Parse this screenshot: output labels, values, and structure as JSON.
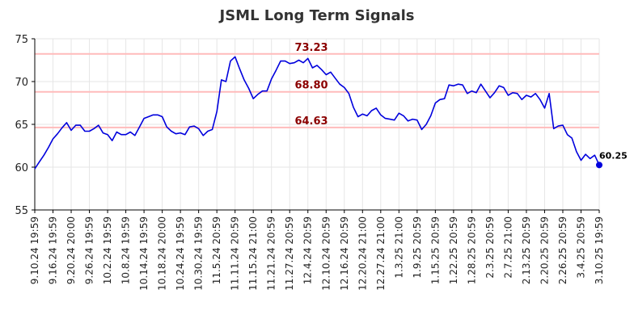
{
  "chart_data": {
    "type": "line",
    "title": "JSML Long Term Signals",
    "xlabel": "",
    "ylabel": "",
    "ylim": [
      55,
      75
    ],
    "y_ticks": [
      55,
      60,
      65,
      70,
      75
    ],
    "grid": true,
    "x_tick_labels": [
      "9.10.24 19:59",
      "9.16.24 19:59",
      "9.20.24 20:00",
      "9.26.24 19:59",
      "10.2.24 19:59",
      "10.8.24 19:59",
      "10.14.24 19:59",
      "10.18.24 20:00",
      "10.24.24 19:59",
      "10.30.24 19:59",
      "11.5.24 20:59",
      "11.11.24 20:59",
      "11.15.24 21:00",
      "11.21.24 20:59",
      "11.27.24 20:59",
      "12.4.24 20:59",
      "12.10.24 20:59",
      "12.16.24 20:59",
      "12.20.24 21:00",
      "12.27.24 21:00",
      "1.3.25 21:00",
      "1.9.25 20:59",
      "1.15.25 20:59",
      "1.22.25 20:59",
      "1.28.25 20:59",
      "2.3.25 20:59",
      "2.7.25 21:00",
      "2.13.25 20:59",
      "2.20.25 20:59",
      "2.26.25 20:59",
      "3.4.25 20:59",
      "3.10.25 19:59"
    ],
    "series": [
      {
        "values": [
          59.8,
          60.6,
          61.4,
          62.3,
          63.3,
          63.9,
          64.6,
          65.2,
          64.3,
          64.9,
          64.9,
          64.2,
          64.2,
          64.5,
          64.9,
          64.0,
          63.8,
          63.1,
          64.1,
          63.8,
          63.8,
          64.1,
          63.7,
          64.7,
          65.7,
          65.9,
          66.1,
          66.1,
          65.9,
          64.7,
          64.2,
          63.9,
          64.0,
          63.8,
          64.7,
          64.8,
          64.5,
          63.7,
          64.2,
          64.4,
          66.5,
          70.2,
          70.0,
          72.4,
          72.9,
          71.5,
          70.2,
          69.2,
          68.0,
          68.5,
          68.9,
          68.9,
          70.3,
          71.3,
          72.4,
          72.4,
          72.1,
          72.2,
          72.5,
          72.2,
          72.7,
          71.6,
          71.9,
          71.4,
          70.8,
          71.1,
          70.4,
          69.7,
          69.3,
          68.6,
          67.0,
          65.9,
          66.2,
          66.0,
          66.6,
          66.9,
          66.1,
          65.7,
          65.6,
          65.5,
          66.3,
          66.0,
          65.4,
          65.6,
          65.5,
          64.4,
          65.0,
          66.0,
          67.5,
          67.9,
          68.0,
          69.6,
          69.5,
          69.7,
          69.6,
          68.6,
          68.9,
          68.7,
          69.7,
          68.9,
          68.1,
          68.7,
          69.5,
          69.3,
          68.4,
          68.7,
          68.6,
          67.9,
          68.4,
          68.2,
          68.6,
          67.9,
          66.9,
          68.6,
          64.5,
          64.8,
          64.9,
          63.8,
          63.4,
          61.8,
          60.8,
          61.5,
          61.0,
          61.4,
          60.25
        ]
      }
    ],
    "reference_lines": [
      {
        "value": 73.23,
        "label": "73.23"
      },
      {
        "value": 68.8,
        "label": "68.80"
      },
      {
        "value": 64.63,
        "label": "64.63"
      }
    ],
    "last_point": {
      "value": 60.25,
      "label": "60.25"
    },
    "colors": {
      "line": "#0000dd",
      "reference_line": "#ffbbbb",
      "reference_label": "#8b0000",
      "grid": "#e6e6e6",
      "axis": "#000000"
    }
  }
}
